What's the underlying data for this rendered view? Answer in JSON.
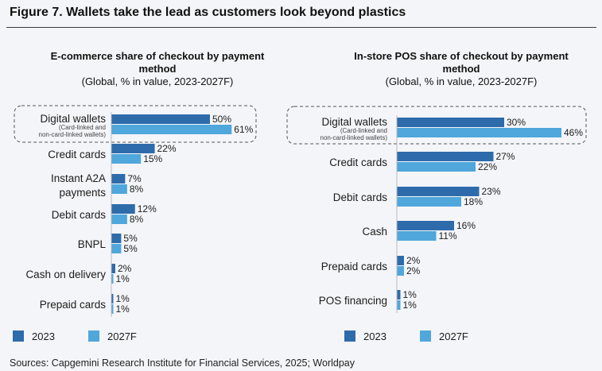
{
  "figure_title": "Figure 7. Wallets take the lead as customers look beyond plastics",
  "source": "Sources: Capgemini Research Institute for Financial Services, 2025; Worldpay",
  "colors": {
    "series_2023": "#2e6bab",
    "series_2027F": "#4fa7db",
    "background": "#f4f5f9"
  },
  "chart_data": [
    {
      "type": "bar",
      "orientation": "horizontal",
      "title": "E-commerce share of checkout by payment method",
      "subtitle": "(Global, % in value, 2023-2027F)",
      "categories": [
        "Digital wallets",
        "Credit cards",
        "Instant A2A payments",
        "Debit cards",
        "BNPL",
        "Cash on delivery",
        "Prepaid cards"
      ],
      "category_notes": {
        "Digital wallets": [
          "(Card-linked and",
          "non-card-linked wallets)"
        ]
      },
      "highlighted_category": "Digital wallets",
      "series": [
        {
          "name": "2023",
          "values": [
            50,
            22,
            7,
            12,
            5,
            2,
            1
          ]
        },
        {
          "name": "2027F",
          "values": [
            61,
            15,
            8,
            8,
            5,
            1,
            1
          ]
        }
      ],
      "value_suffix": "%",
      "legend": "bottom-left",
      "grid": false
    },
    {
      "type": "bar",
      "orientation": "horizontal",
      "title": "In-store POS share of checkout by payment method",
      "subtitle": "(Global, % in value, 2023-2027F)",
      "categories": [
        "Digital wallets",
        "Credit cards",
        "Debit cards",
        "Cash",
        "Prepaid cards",
        "POS financing"
      ],
      "category_notes": {
        "Digital wallets": [
          "(Card-linked and",
          "non-card-linked wallets)"
        ]
      },
      "highlighted_category": "Digital wallets",
      "series": [
        {
          "name": "2023",
          "values": [
            30,
            27,
            23,
            16,
            2,
            1
          ]
        },
        {
          "name": "2027F",
          "values": [
            46,
            22,
            18,
            11,
            2,
            1
          ]
        }
      ],
      "value_suffix": "%",
      "legend": "bottom-left",
      "grid": false
    }
  ]
}
